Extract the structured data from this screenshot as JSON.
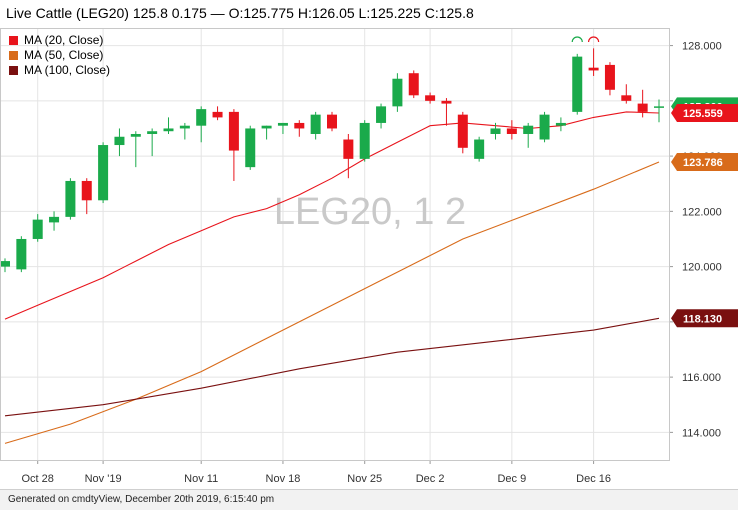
{
  "header": {
    "title": "Live Cattle (LEG20) 125.8 0.175 — O:125.775 H:126.05 L:125.225 C:125.8"
  },
  "watermark": "LEG20, 1 2",
  "footer": {
    "text": "Generated on cmdtyView, December 20th 2019, 6:15:40 pm"
  },
  "colors": {
    "up": "#1aaa4b",
    "down": "#e8141c",
    "ma20": "#e8141c",
    "ma50": "#d86b1a",
    "ma100": "#7a1010",
    "grid": "#e4e4e4"
  },
  "chart_data": {
    "type": "candlestick",
    "ylim": [
      113,
      128.6
    ],
    "yticks": [
      114,
      116,
      118,
      120,
      122,
      124,
      126,
      128
    ],
    "ytick_labels": [
      "114.000",
      "116.000",
      "118.000",
      "120.000",
      "122.000",
      "124.000",
      "126.000",
      "128.000"
    ],
    "xtick_labels": [
      {
        "label": "Oct 28",
        "index": 2
      },
      {
        "label": "Nov '19",
        "index": 6
      },
      {
        "label": "Nov 11",
        "index": 12
      },
      {
        "label": "Nov 18",
        "index": 17
      },
      {
        "label": "Nov 25",
        "index": 22
      },
      {
        "label": "Dec 2",
        "index": 26
      },
      {
        "label": "Dec 9",
        "index": 31
      },
      {
        "label": "Dec 16",
        "index": 36
      }
    ],
    "candles": [
      {
        "o": 120.0,
        "h": 120.3,
        "l": 119.8,
        "c": 120.2
      },
      {
        "o": 119.9,
        "h": 121.1,
        "l": 119.8,
        "c": 121.0
      },
      {
        "o": 121.0,
        "h": 121.9,
        "l": 120.9,
        "c": 121.7
      },
      {
        "o": 121.6,
        "h": 122.0,
        "l": 121.3,
        "c": 121.8
      },
      {
        "o": 121.8,
        "h": 123.2,
        "l": 121.7,
        "c": 123.1
      },
      {
        "o": 123.1,
        "h": 123.2,
        "l": 121.9,
        "c": 122.4
      },
      {
        "o": 122.4,
        "h": 124.5,
        "l": 122.3,
        "c": 124.4
      },
      {
        "o": 124.4,
        "h": 125.0,
        "l": 124.0,
        "c": 124.7
      },
      {
        "o": 124.7,
        "h": 124.9,
        "l": 123.6,
        "c": 124.8
      },
      {
        "o": 124.8,
        "h": 125.0,
        "l": 124.0,
        "c": 124.9
      },
      {
        "o": 124.9,
        "h": 125.4,
        "l": 124.8,
        "c": 125.0
      },
      {
        "o": 125.0,
        "h": 125.2,
        "l": 124.6,
        "c": 125.1
      },
      {
        "o": 125.1,
        "h": 125.8,
        "l": 124.5,
        "c": 125.7
      },
      {
        "o": 125.6,
        "h": 125.8,
        "l": 125.3,
        "c": 125.4
      },
      {
        "o": 125.6,
        "h": 125.7,
        "l": 123.1,
        "c": 124.2
      },
      {
        "o": 123.6,
        "h": 125.1,
        "l": 123.5,
        "c": 125.0
      },
      {
        "o": 125.0,
        "h": 125.1,
        "l": 124.6,
        "c": 125.1
      },
      {
        "o": 125.1,
        "h": 125.2,
        "l": 124.8,
        "c": 125.2
      },
      {
        "o": 125.2,
        "h": 125.3,
        "l": 124.7,
        "c": 125.0
      },
      {
        "o": 124.8,
        "h": 125.6,
        "l": 124.6,
        "c": 125.5
      },
      {
        "o": 125.5,
        "h": 125.6,
        "l": 124.9,
        "c": 125.0
      },
      {
        "o": 124.6,
        "h": 124.8,
        "l": 123.2,
        "c": 123.9
      },
      {
        "o": 123.9,
        "h": 125.3,
        "l": 123.8,
        "c": 125.2
      },
      {
        "o": 125.2,
        "h": 125.9,
        "l": 125.0,
        "c": 125.8
      },
      {
        "o": 125.8,
        "h": 127.0,
        "l": 125.6,
        "c": 126.8
      },
      {
        "o": 127.0,
        "h": 127.1,
        "l": 126.1,
        "c": 126.2
      },
      {
        "o": 126.2,
        "h": 126.3,
        "l": 125.9,
        "c": 126.0
      },
      {
        "o": 126.0,
        "h": 126.1,
        "l": 125.1,
        "c": 125.9
      },
      {
        "o": 125.5,
        "h": 125.6,
        "l": 124.1,
        "c": 124.3
      },
      {
        "o": 123.9,
        "h": 124.7,
        "l": 123.8,
        "c": 124.6
      },
      {
        "o": 124.8,
        "h": 125.2,
        "l": 124.6,
        "c": 125.0
      },
      {
        "o": 125.0,
        "h": 125.3,
        "l": 124.6,
        "c": 124.8
      },
      {
        "o": 124.8,
        "h": 125.2,
        "l": 124.3,
        "c": 125.1
      },
      {
        "o": 124.6,
        "h": 125.6,
        "l": 124.5,
        "c": 125.5
      },
      {
        "o": 125.1,
        "h": 125.4,
        "l": 124.9,
        "c": 125.2
      },
      {
        "o": 125.6,
        "h": 127.7,
        "l": 125.5,
        "c": 127.6
      },
      {
        "o": 127.2,
        "h": 127.9,
        "l": 126.9,
        "c": 127.1
      },
      {
        "o": 127.3,
        "h": 127.4,
        "l": 126.2,
        "c": 126.4
      },
      {
        "o": 126.2,
        "h": 126.6,
        "l": 125.9,
        "c": 126.0
      },
      {
        "o": 125.9,
        "h": 126.4,
        "l": 125.4,
        "c": 125.6
      },
      {
        "o": 125.775,
        "h": 126.05,
        "l": 125.225,
        "c": 125.8
      }
    ],
    "series": [
      {
        "name": "MA (20, Close)",
        "color_key": "ma20",
        "last_label": "125.559",
        "points": [
          [
            0,
            118.1
          ],
          [
            2,
            118.6
          ],
          [
            4,
            119.1
          ],
          [
            6,
            119.6
          ],
          [
            8,
            120.2
          ],
          [
            10,
            120.8
          ],
          [
            12,
            121.3
          ],
          [
            14,
            121.8
          ],
          [
            16,
            122.1
          ],
          [
            18,
            122.6
          ],
          [
            20,
            123.2
          ],
          [
            22,
            123.9
          ],
          [
            24,
            124.5
          ],
          [
            26,
            125.1
          ],
          [
            28,
            125.2
          ],
          [
            30,
            125.1
          ],
          [
            32,
            125.0
          ],
          [
            34,
            125.1
          ],
          [
            36,
            125.4
          ],
          [
            38,
            125.6
          ],
          [
            40,
            125.559
          ]
        ]
      },
      {
        "name": "MA (50, Close)",
        "color_key": "ma50",
        "last_label": "123.786",
        "points": [
          [
            0,
            113.6
          ],
          [
            4,
            114.3
          ],
          [
            8,
            115.2
          ],
          [
            12,
            116.2
          ],
          [
            16,
            117.4
          ],
          [
            20,
            118.6
          ],
          [
            24,
            119.8
          ],
          [
            28,
            121.0
          ],
          [
            32,
            121.9
          ],
          [
            36,
            122.8
          ],
          [
            40,
            123.786
          ]
        ]
      },
      {
        "name": "MA (100, Close)",
        "color_key": "ma100",
        "last_label": "118.130",
        "points": [
          [
            0,
            114.6
          ],
          [
            6,
            115.0
          ],
          [
            12,
            115.6
          ],
          [
            18,
            116.3
          ],
          [
            24,
            116.9
          ],
          [
            30,
            117.3
          ],
          [
            36,
            117.7
          ],
          [
            40,
            118.13
          ]
        ]
      }
    ],
    "current_price_label": "125.800",
    "current_price": 125.8
  }
}
